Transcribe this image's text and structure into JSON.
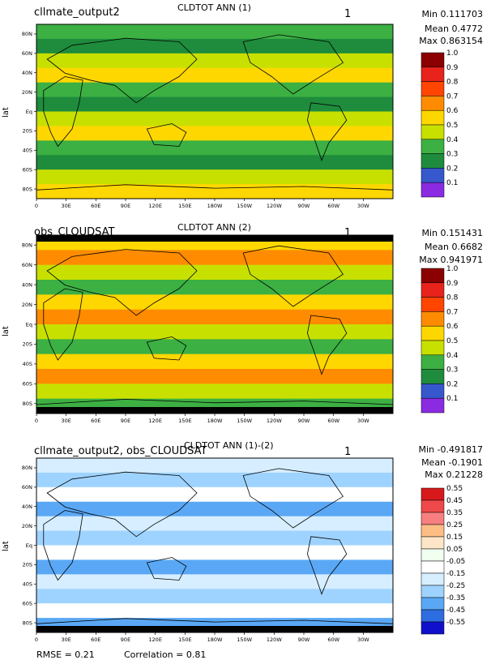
{
  "chart_data": [
    {
      "type": "heatmap",
      "case_name": "cllmate_output2",
      "title": "CLDTOT ANN (1)",
      "number": "1",
      "stats": {
        "min": "Min 0.111703",
        "mean": "Mean 0.4772",
        "max": "Max 0.863154"
      },
      "ylabel": "lat",
      "y_ticks": [
        "80N",
        "60N",
        "40N",
        "20N",
        "Eq",
        "20S",
        "40S",
        "60S",
        "80S"
      ],
      "x_ticks": [
        "0",
        "30E",
        "60E",
        "90E",
        "120E",
        "150E",
        "180W",
        "150W",
        "120W",
        "90W",
        "60W",
        "30W"
      ],
      "colorbar": {
        "labels": [
          "1.0",
          "0.9",
          "0.8",
          "0.7",
          "0.6",
          "0.5",
          "0.4",
          "0.3",
          "0.2",
          "0.1"
        ],
        "colors": [
          "#8B0000",
          "#E8231B",
          "#FF4500",
          "#FF8C00",
          "#FFD700",
          "#C8E000",
          "#3CB043",
          "#1E8C3C",
          "#3558CC",
          "#8A2BE2"
        ]
      }
    },
    {
      "type": "heatmap",
      "case_name": "obs_CLOUDSAT",
      "title": "CLDTOT ANN (2)",
      "number": "1",
      "stats": {
        "min": "Min 0.151431",
        "mean": "Mean 0.6682",
        "max": "Max 0.941971"
      },
      "ylabel": "lat",
      "y_ticks": [
        "80N",
        "60N",
        "40N",
        "20N",
        "Eq",
        "20S",
        "40S",
        "60S",
        "80S"
      ],
      "x_ticks": [
        "0",
        "30E",
        "60E",
        "90E",
        "120E",
        "150E",
        "180W",
        "150W",
        "120W",
        "90W",
        "60W",
        "30W"
      ],
      "colorbar": {
        "labels": [
          "1.0",
          "0.9",
          "0.8",
          "0.7",
          "0.6",
          "0.5",
          "0.4",
          "0.3",
          "0.2",
          "0.1"
        ],
        "colors": [
          "#8B0000",
          "#E8231B",
          "#FF4500",
          "#FF8C00",
          "#FFD700",
          "#C8E000",
          "#3CB043",
          "#1E8C3C",
          "#3558CC",
          "#8A2BE2"
        ]
      }
    },
    {
      "type": "heatmap",
      "case_name": "cllmate_output2, obs_CLOUDSAT",
      "title": "CLDTOT ANN (1)-(2)",
      "number": "1",
      "stats": {
        "min": "Min -0.491817",
        "mean": "Mean -0.1901",
        "max": "Max 0.21228"
      },
      "ylabel": "lat",
      "y_ticks": [
        "80N",
        "60N",
        "40N",
        "20N",
        "Eq",
        "20S",
        "40S",
        "60S",
        "80S"
      ],
      "x_ticks": [
        "0",
        "30E",
        "60E",
        "90E",
        "120E",
        "150E",
        "180W",
        "150W",
        "120W",
        "90W",
        "60W",
        "30W"
      ],
      "colorbar": {
        "labels": [
          "0.55",
          "0.45",
          "0.35",
          "0.25",
          "0.15",
          "0.05",
          "-0.05",
          "-0.15",
          "-0.25",
          "-0.35",
          "-0.45",
          "-0.55"
        ],
        "colors": [
          "#D7191C",
          "#F0494B",
          "#F77F7F",
          "#FDBE85",
          "#FDE6C8",
          "#F0FFF0",
          "#FFFFFF",
          "#D6EEFF",
          "#9FD3FF",
          "#5AA8F5",
          "#2E6DE0",
          "#1010CC"
        ]
      },
      "rmse": "RMSE = 0.21",
      "correlation": "Correlation = 0.81"
    }
  ]
}
